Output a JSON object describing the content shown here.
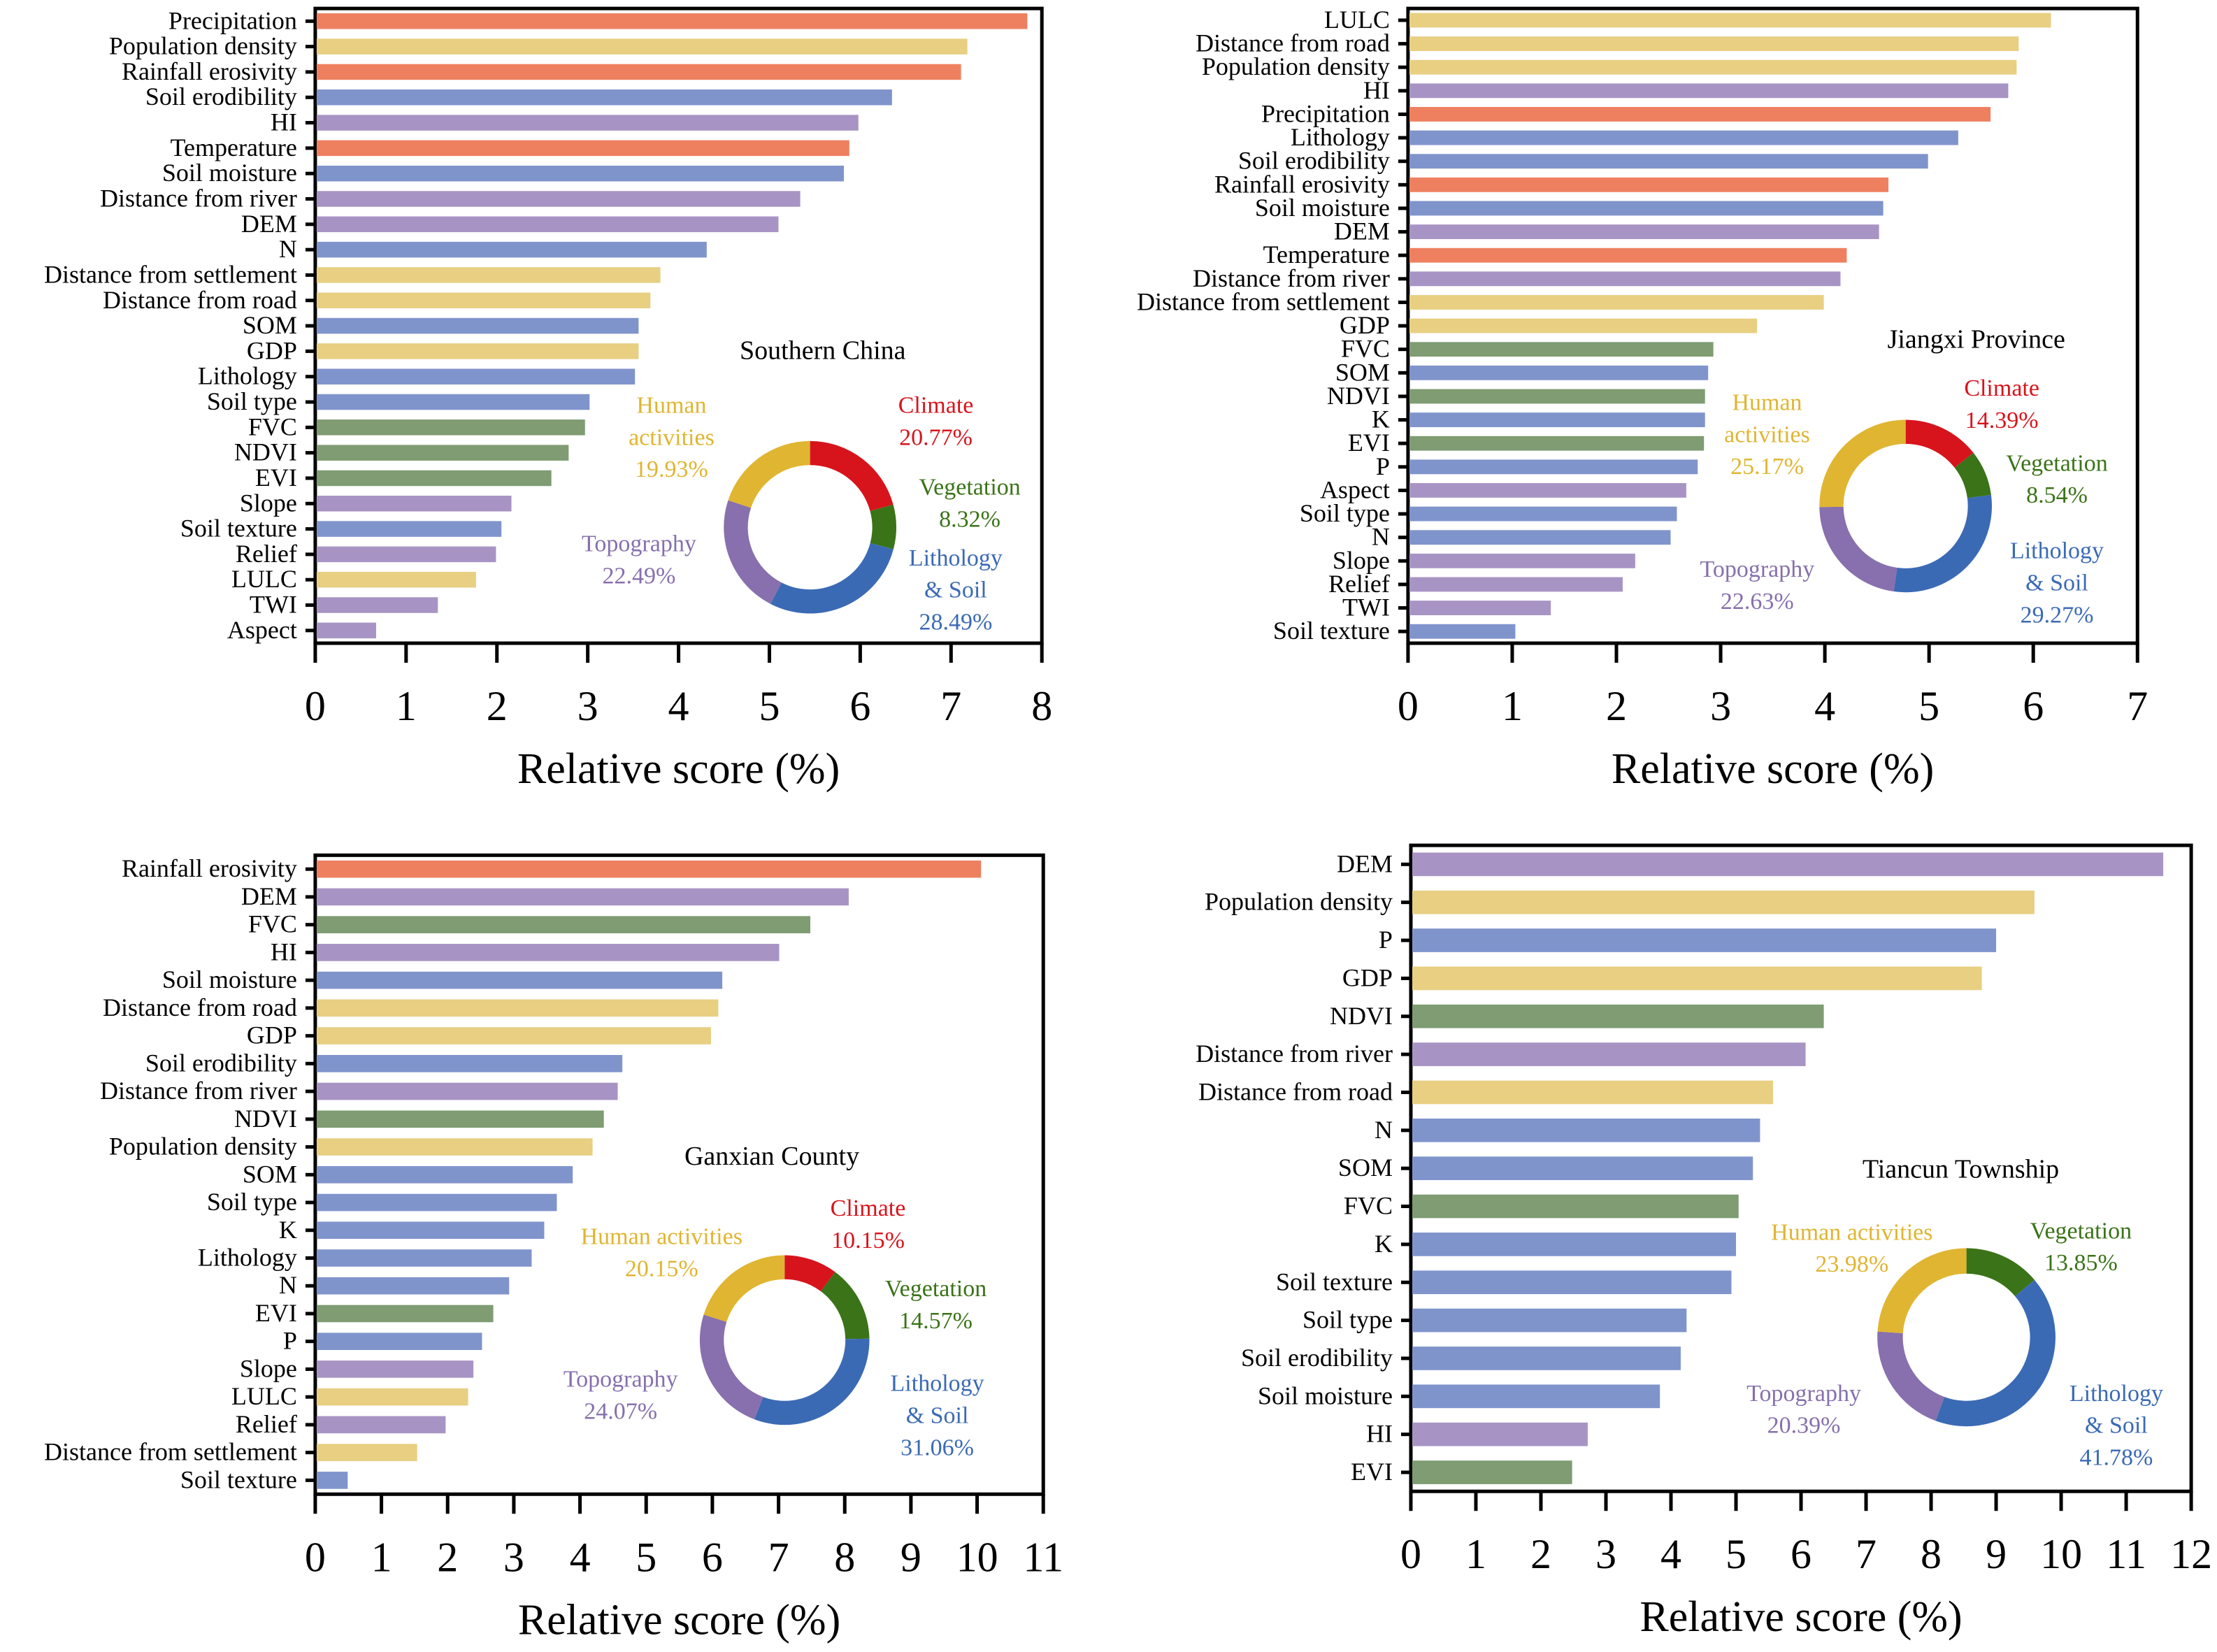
{
  "colors": {
    "Climate": "#ee8060",
    "Human activities": "#e8cf82",
    "Lithology & Soil": "#8094cc",
    "Topography": "#a894c4",
    "Vegetation": "#7f9c72"
  },
  "donut_colors": {
    "Climate": "#d7141c",
    "Vegetation": "#3b7318",
    "Lithology & Soil": "#3b6ab5",
    "Topography": "#8770ad",
    "Human activities": "#e0b531"
  },
  "chart_data": [
    {
      "type": "bar",
      "orientation": "horizontal",
      "title": "Southern China",
      "xlabel": "Relative score (%)",
      "xlim": [
        0,
        8
      ],
      "xticks": [
        "0",
        "1",
        "2",
        "3",
        "4",
        "5",
        "6",
        "7",
        "8"
      ],
      "categories": [
        "Precipitation",
        "Population density",
        "Rainfall erosivity",
        "Soil erodibility",
        "HI",
        "Temperature",
        "Soil moisture",
        "Distance from river",
        "DEM",
        "N",
        "Distance from settlement",
        "Distance from road",
        "SOM",
        "GDP",
        "Lithology",
        "Soil type",
        "FVC",
        "NDVI",
        "EVI",
        "Slope",
        "Soil texture",
        "Relief",
        "LULC",
        "TWI",
        "Aspect"
      ],
      "values": [
        7.84,
        7.18,
        7.11,
        6.35,
        5.98,
        5.88,
        5.82,
        5.34,
        5.1,
        4.31,
        3.8,
        3.69,
        3.56,
        3.56,
        3.52,
        3.02,
        2.97,
        2.79,
        2.6,
        2.16,
        2.05,
        1.99,
        1.77,
        1.35,
        0.67
      ],
      "groups": [
        "Climate",
        "Human activities",
        "Climate",
        "Lithology & Soil",
        "Topography",
        "Climate",
        "Lithology & Soil",
        "Topography",
        "Topography",
        "Lithology & Soil",
        "Human activities",
        "Human activities",
        "Lithology & Soil",
        "Human activities",
        "Lithology & Soil",
        "Lithology & Soil",
        "Vegetation",
        "Vegetation",
        "Vegetation",
        "Topography",
        "Lithology & Soil",
        "Topography",
        "Human activities",
        "Topography",
        "Topography"
      ],
      "donut": {
        "type": "pie",
        "slices": [
          {
            "label": "Climate",
            "value": 20.77,
            "text": "20.77%"
          },
          {
            "label": "Vegetation",
            "value": 8.32,
            "text": "8.32%"
          },
          {
            "label": "Lithology & Soil",
            "value": 28.49,
            "text": "28.49%"
          },
          {
            "label": "Topography",
            "value": 22.49,
            "text": "22.49%"
          },
          {
            "label": "Human activities",
            "value": 19.93,
            "text": "19.93%"
          }
        ]
      }
    },
    {
      "type": "bar",
      "orientation": "horizontal",
      "title": "Jiangxi Province",
      "xlabel": "Relative score (%)",
      "xlim": [
        0,
        7
      ],
      "xticks": [
        "0",
        "1",
        "2",
        "3",
        "4",
        "5",
        "6",
        "7"
      ],
      "categories": [
        "LULC",
        "Distance from road",
        "Population density",
        "HI",
        "Precipitation",
        "Lithology",
        "Soil erodibility",
        "Rainfall erosivity",
        "Soil moisture",
        "DEM",
        "Temperature",
        "Distance from river",
        "Distance from settlement",
        "GDP",
        "FVC",
        "SOM",
        "NDVI",
        "K",
        "EVI",
        "P",
        "Aspect",
        "Soil type",
        "N",
        "Slope",
        "Relief",
        "TWI",
        "Soil texture"
      ],
      "values": [
        6.17,
        5.86,
        5.84,
        5.76,
        5.59,
        5.28,
        4.99,
        4.61,
        4.56,
        4.52,
        4.21,
        4.15,
        3.99,
        3.35,
        2.93,
        2.88,
        2.85,
        2.85,
        2.84,
        2.78,
        2.67,
        2.58,
        2.52,
        2.18,
        2.06,
        1.37,
        1.03
      ],
      "groups": [
        "Human activities",
        "Human activities",
        "Human activities",
        "Topography",
        "Climate",
        "Lithology & Soil",
        "Lithology & Soil",
        "Climate",
        "Lithology & Soil",
        "Topography",
        "Climate",
        "Topography",
        "Human activities",
        "Human activities",
        "Vegetation",
        "Lithology & Soil",
        "Vegetation",
        "Lithology & Soil",
        "Vegetation",
        "Lithology & Soil",
        "Topography",
        "Lithology & Soil",
        "Lithology & Soil",
        "Topography",
        "Topography",
        "Topography",
        "Lithology & Soil"
      ],
      "donut": {
        "type": "pie",
        "slices": [
          {
            "label": "Climate",
            "value": 14.39,
            "text": "14.39%"
          },
          {
            "label": "Vegetation",
            "value": 8.54,
            "text": "8.54%"
          },
          {
            "label": "Lithology & Soil",
            "value": 29.27,
            "text": "29.27%"
          },
          {
            "label": "Topography",
            "value": 22.63,
            "text": "22.63%"
          },
          {
            "label": "Human activities",
            "value": 25.17,
            "text": "25.17%"
          }
        ]
      }
    },
    {
      "type": "bar",
      "orientation": "horizontal",
      "title": "Ganxian County",
      "xlabel": "Relative score (%)",
      "xlim": [
        0,
        11
      ],
      "xticks": [
        "0",
        "1",
        "2",
        "3",
        "4",
        "5",
        "6",
        "7",
        "8",
        "9",
        "10",
        "11"
      ],
      "categories": [
        "Rainfall erosivity",
        "DEM",
        "FVC",
        "HI",
        "Soil moisture",
        "Distance from road",
        "GDP",
        "Soil erodibility",
        "Distance from river",
        "NDVI",
        "Population density",
        "SOM",
        "Soil type",
        "K",
        "Lithology",
        "N",
        "EVI",
        "P",
        "Slope",
        "LULC",
        "Relief",
        "Distance from settlement",
        "Soil texture"
      ],
      "values": [
        10.06,
        8.06,
        7.48,
        7.01,
        6.15,
        6.09,
        5.98,
        4.64,
        4.57,
        4.36,
        4.19,
        3.89,
        3.65,
        3.46,
        3.27,
        2.93,
        2.69,
        2.52,
        2.39,
        2.31,
        1.97,
        1.54,
        0.49
      ],
      "groups": [
        "Climate",
        "Topography",
        "Vegetation",
        "Topography",
        "Lithology & Soil",
        "Human activities",
        "Human activities",
        "Lithology & Soil",
        "Topography",
        "Vegetation",
        "Human activities",
        "Lithology & Soil",
        "Lithology & Soil",
        "Lithology & Soil",
        "Lithology & Soil",
        "Lithology & Soil",
        "Vegetation",
        "Lithology & Soil",
        "Topography",
        "Human activities",
        "Topography",
        "Human activities",
        "Lithology & Soil"
      ],
      "donut": {
        "type": "pie",
        "slices": [
          {
            "label": "Climate",
            "value": 10.15,
            "text": "10.15%"
          },
          {
            "label": "Vegetation",
            "value": 14.57,
            "text": "14.57%"
          },
          {
            "label": "Lithology & Soil",
            "value": 31.06,
            "text": "31.06%"
          },
          {
            "label": "Topography",
            "value": 24.07,
            "text": "24.07%"
          },
          {
            "label": "Human activities",
            "value": 20.15,
            "text": "20.15%"
          }
        ]
      }
    },
    {
      "type": "bar",
      "orientation": "horizontal",
      "title": "Tiancun Township",
      "xlabel": "Relative score (%)",
      "xlim": [
        0,
        12
      ],
      "xticks": [
        "0",
        "1",
        "2",
        "3",
        "4",
        "5",
        "6",
        "7",
        "8",
        "9",
        "10",
        "11",
        "12"
      ],
      "categories": [
        "DEM",
        "Population density",
        "P",
        "GDP",
        "NDVI",
        "Distance from river",
        "Distance from road",
        "N",
        "SOM",
        "FVC",
        "K",
        "Soil texture",
        "Soil type",
        "Soil erodibility",
        "Soil moisture",
        "HI",
        "EVI"
      ],
      "values": [
        11.57,
        9.59,
        9.0,
        8.78,
        6.35,
        6.07,
        5.57,
        5.37,
        5.26,
        5.04,
        5.0,
        4.93,
        4.24,
        4.15,
        3.83,
        2.72,
        2.48
      ],
      "groups": [
        "Topography",
        "Human activities",
        "Lithology & Soil",
        "Human activities",
        "Vegetation",
        "Topography",
        "Human activities",
        "Lithology & Soil",
        "Lithology & Soil",
        "Vegetation",
        "Lithology & Soil",
        "Lithology & Soil",
        "Lithology & Soil",
        "Lithology & Soil",
        "Lithology & Soil",
        "Topography",
        "Vegetation"
      ],
      "donut": {
        "type": "pie",
        "slices": [
          {
            "label": "Vegetation",
            "value": 13.85,
            "text": "13.85%"
          },
          {
            "label": "Lithology & Soil",
            "value": 41.78,
            "text": "41.78%"
          },
          {
            "label": "Topography",
            "value": 20.39,
            "text": "20.39%"
          },
          {
            "label": "Human activities",
            "value": 23.98,
            "text": "23.98%"
          }
        ]
      }
    }
  ]
}
